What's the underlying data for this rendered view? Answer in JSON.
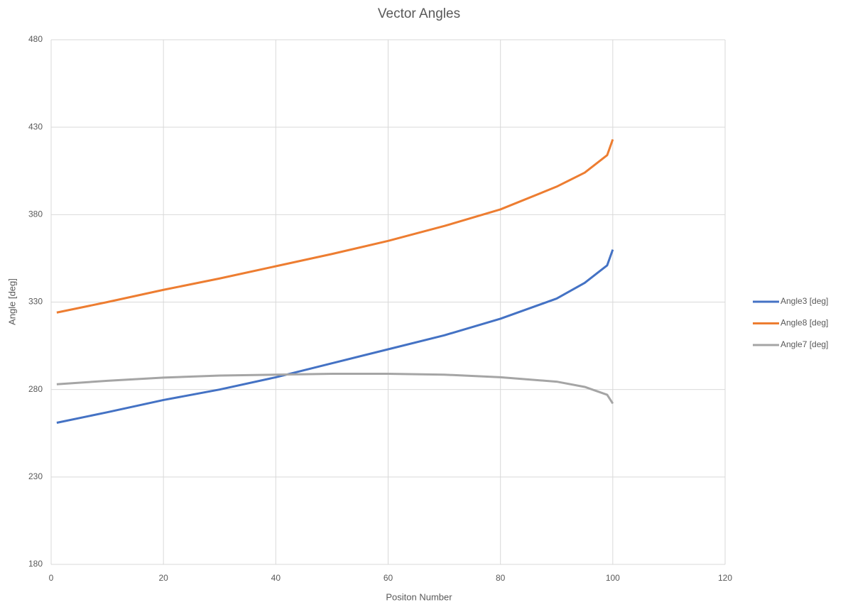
{
  "chart_data": {
    "type": "line",
    "title": "Vector Angles",
    "xlabel": "Positon Number",
    "ylabel": "Angle [deg]",
    "x": [
      1,
      10,
      20,
      30,
      40,
      50,
      60,
      70,
      80,
      90,
      95,
      99,
      100
    ],
    "series": [
      {
        "name": "Angle3 [deg]",
        "color": "#4472c4",
        "values": [
          261,
          267,
          274,
          280,
          287,
          295,
          303,
          311,
          320.5,
          332,
          341,
          351,
          360
        ]
      },
      {
        "name": "Angle8 [deg]",
        "color": "#ed7d31",
        "values": [
          324,
          330,
          337,
          343.5,
          350.5,
          357.5,
          365,
          373.5,
          383,
          396,
          404,
          414,
          423
        ]
      },
      {
        "name": "Angle7 [deg]",
        "color": "#a5a5a5",
        "values": [
          283,
          285,
          286.8,
          288,
          288.5,
          289,
          289,
          288.5,
          287,
          284.5,
          281.5,
          277,
          272
        ]
      }
    ],
    "xlim": [
      0,
      120
    ],
    "xticks": [
      0,
      20,
      40,
      60,
      80,
      100,
      120
    ],
    "ylim": [
      180,
      480
    ],
    "yticks": [
      180,
      230,
      280,
      330,
      380,
      430,
      480
    ],
    "grid": true,
    "legend": "right"
  }
}
